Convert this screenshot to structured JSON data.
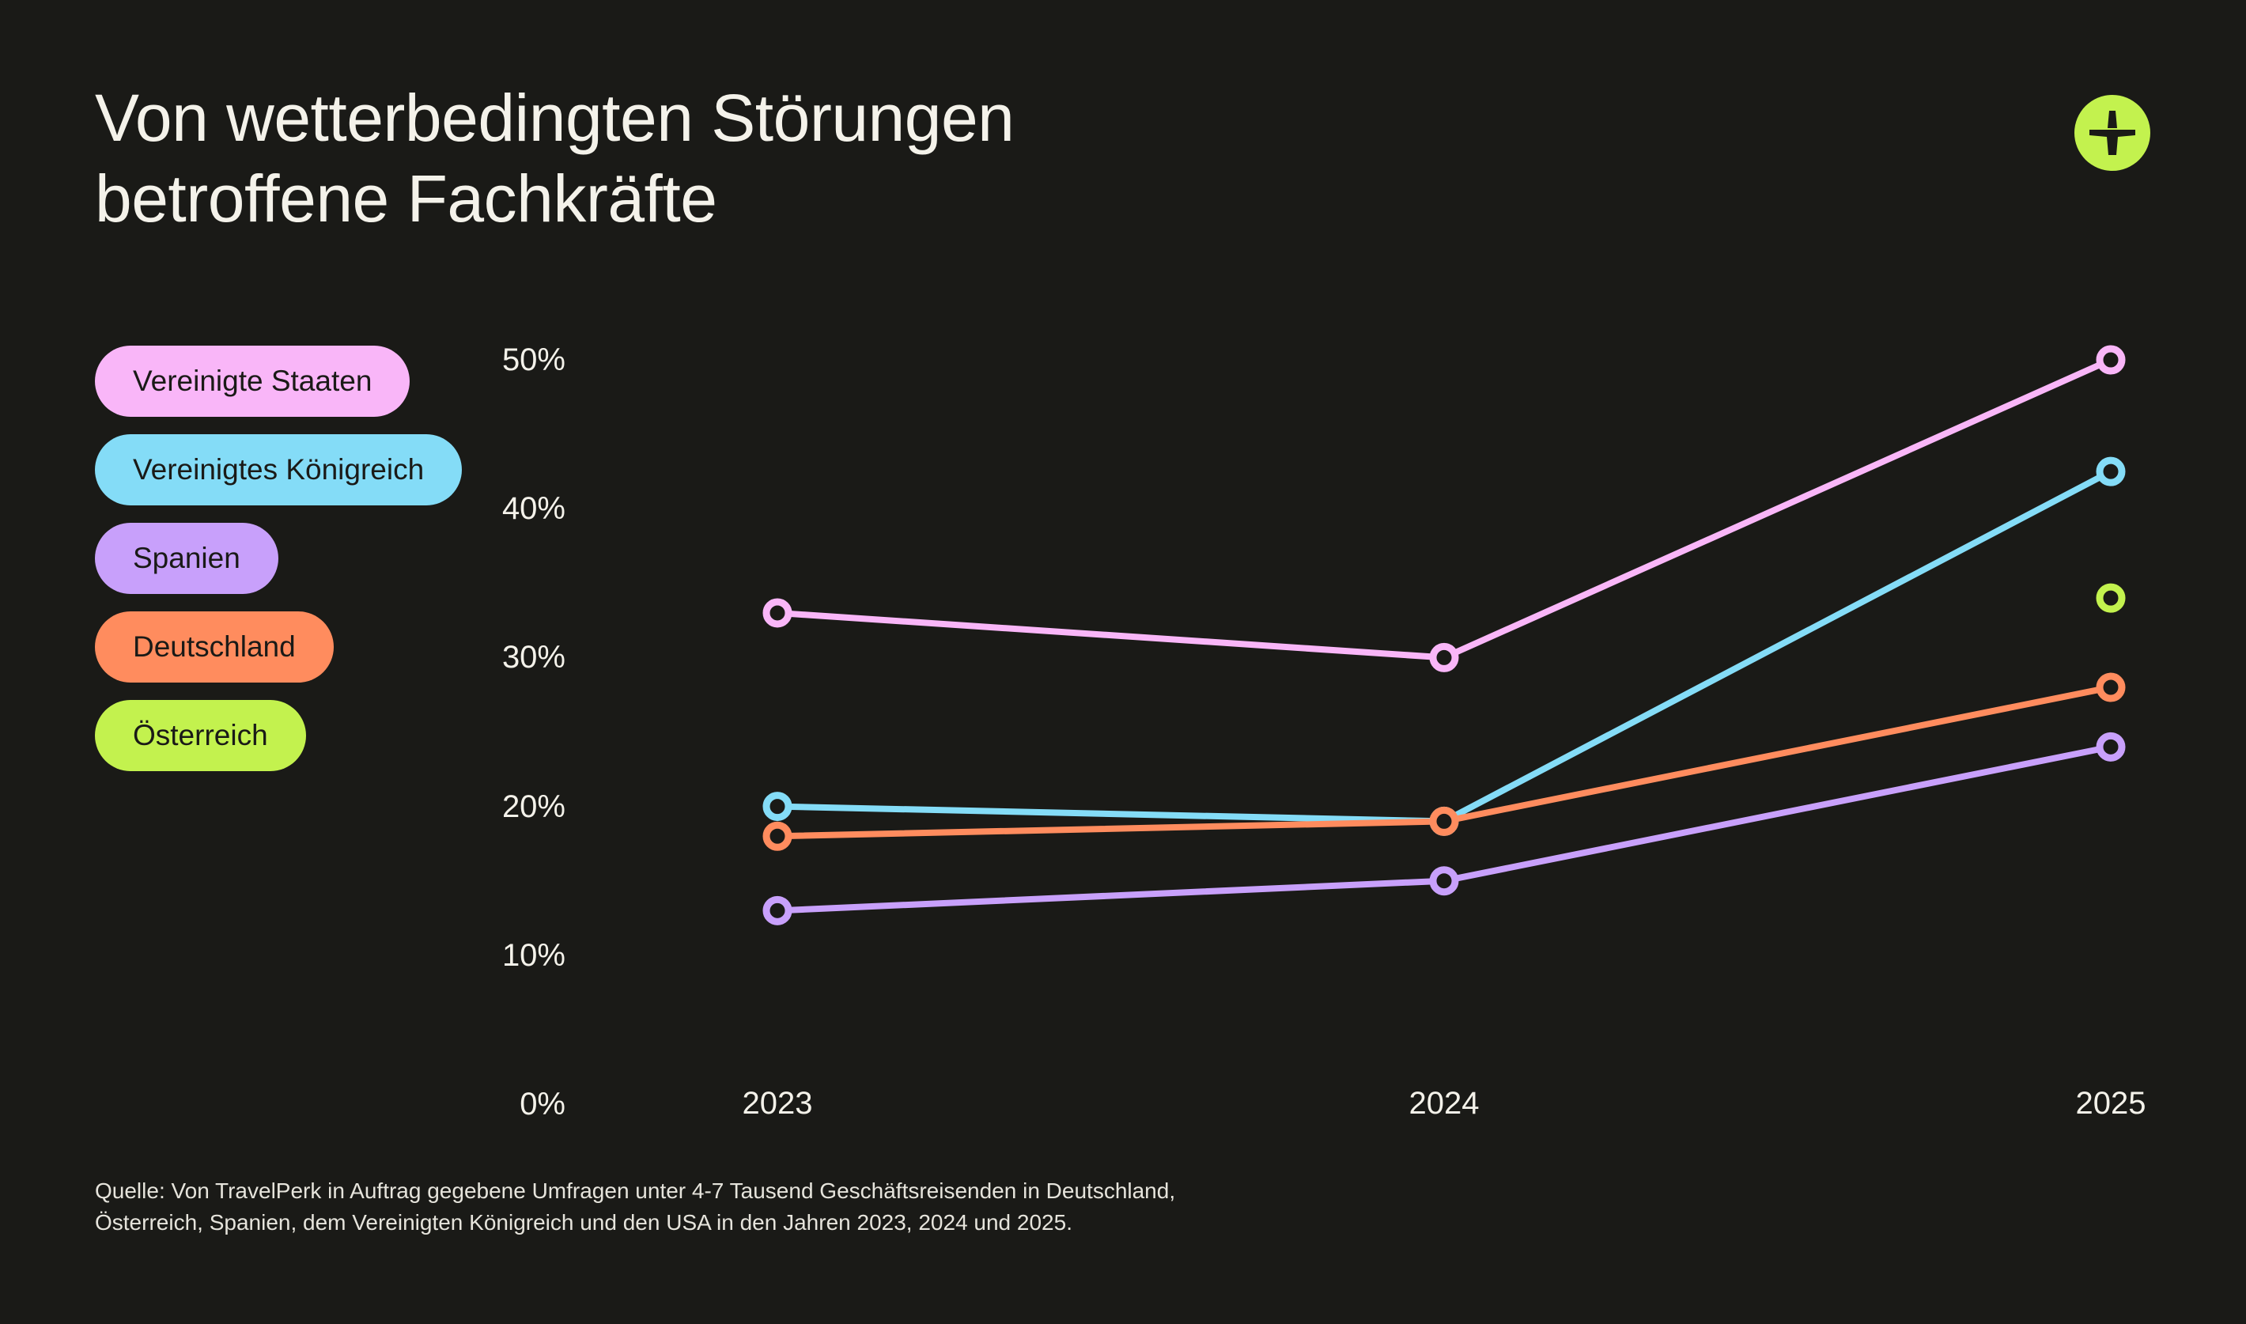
{
  "brand": {
    "logo_icon": "travelperk-plus-icon",
    "logo_color": "#c3f24e",
    "background": "#1a1a17"
  },
  "chart_data": {
    "type": "line",
    "title": "Von wetterbedingten Störungen betroffene Fachkräfte",
    "title_lines": [
      "Von wetterbedingten Störungen",
      "betroffene Fachkräfte"
    ],
    "xlabel": "",
    "ylabel": "",
    "x": [
      "2023",
      "2024",
      "2025"
    ],
    "yticks": [
      "0%",
      "10%",
      "20%",
      "30%",
      "40%",
      "50%"
    ],
    "ytick_values": [
      0,
      10,
      20,
      30,
      40,
      50
    ],
    "ylim": [
      0,
      50
    ],
    "grid": false,
    "legend_position": "left",
    "series": [
      {
        "name": "Vereinigte Staaten",
        "color": "#f9b6f8",
        "values": [
          33,
          30,
          50
        ]
      },
      {
        "name": "Vereinigtes Königreich",
        "color": "#84dcf7",
        "values": [
          20,
          19,
          42.5
        ]
      },
      {
        "name": "Spanien",
        "color": "#c8a0fb",
        "values": [
          13,
          15,
          24
        ]
      },
      {
        "name": "Deutschland",
        "color": "#ff8c5e",
        "values": [
          18,
          19,
          28
        ]
      },
      {
        "name": "Österreich",
        "color": "#c3f24e",
        "values": [
          null,
          null,
          34
        ]
      }
    ],
    "source_lines": [
      "Quelle: Von TravelPerk in Auftrag gegebene Umfragen unter 4-7 Tausend Geschäftsreisenden in Deutschland,",
      "Österreich, Spanien, dem Vereinigten Königreich und den USA in den Jahren 2023, 2024 und 2025."
    ]
  }
}
